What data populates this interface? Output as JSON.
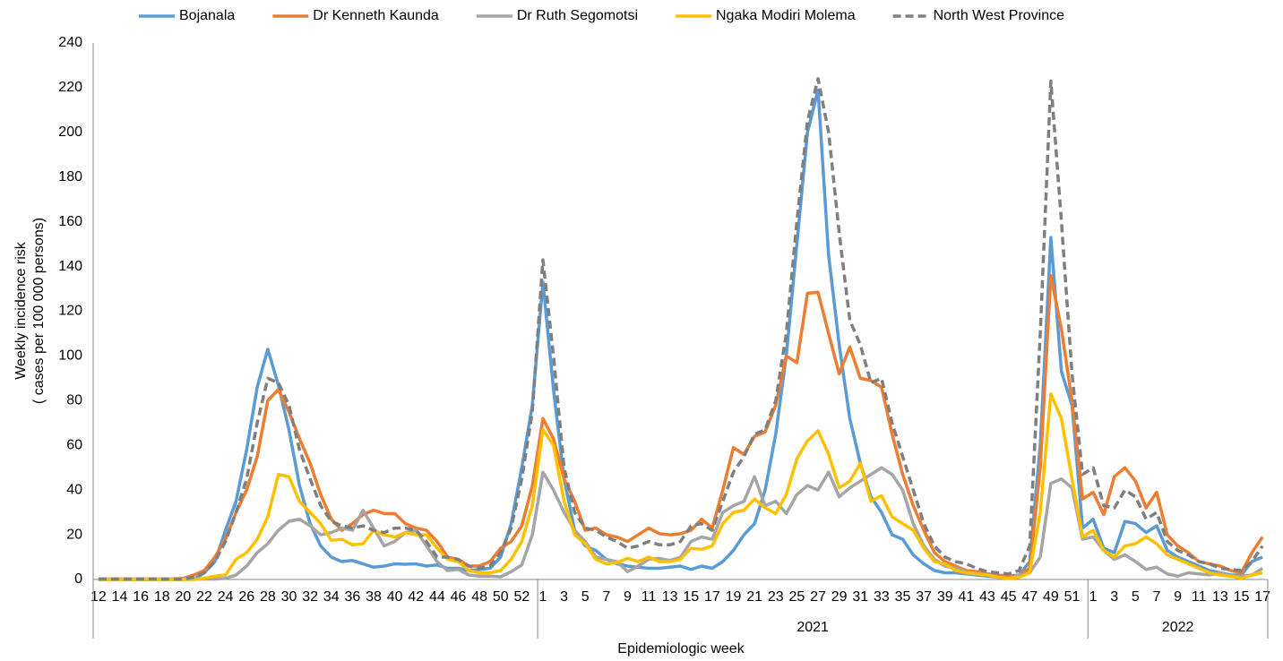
{
  "chart_data": {
    "type": "line",
    "y_label_lines": [
      "Weekly incidence risk",
      "( cases per 100 000 persons)"
    ],
    "x_label": "Epidemiologic week",
    "categories": [
      "12",
      null,
      "14",
      null,
      "16",
      null,
      "18",
      null,
      "20",
      null,
      "22",
      null,
      "24",
      null,
      "26",
      null,
      "28",
      null,
      "30",
      null,
      "32",
      null,
      "34",
      null,
      "36",
      null,
      "38",
      null,
      "40",
      null,
      "42",
      null,
      "44",
      null,
      "46",
      null,
      "48",
      null,
      "50",
      null,
      "52",
      null,
      "1",
      null,
      "3",
      null,
      "5",
      null,
      "7",
      null,
      "9",
      null,
      "11",
      null,
      "13",
      null,
      "15",
      null,
      "17",
      null,
      "19",
      null,
      "21",
      null,
      "23",
      null,
      "25",
      null,
      "27",
      null,
      "29",
      null,
      "31",
      null,
      "33",
      null,
      "35",
      null,
      "37",
      null,
      "39",
      null,
      "41",
      null,
      "43",
      null,
      "45",
      null,
      "47",
      null,
      "49",
      null,
      "51",
      null,
      "1",
      null,
      "3",
      null,
      "5",
      null,
      "7",
      null,
      "9",
      null,
      "11",
      null,
      "13",
      null,
      "15",
      null,
      "17"
    ],
    "category_groups": [
      {
        "label": null,
        "count": 42
      },
      {
        "label": "2021",
        "count": 52
      },
      {
        "label": "2022",
        "count": 17
      }
    ],
    "ylim": [
      0,
      240
    ],
    "yticks": [
      0,
      20,
      40,
      60,
      80,
      100,
      120,
      140,
      160,
      180,
      200,
      220,
      240
    ],
    "grid": false,
    "legend": "top",
    "series": [
      {
        "name": "Bojanala",
        "color": "#5b9bd5",
        "dashed": false,
        "values": [
          0,
          0,
          0,
          0,
          0,
          0,
          0,
          0,
          0,
          0,
          3,
          8,
          22,
          35,
          58,
          86,
          103,
          87,
          67,
          42,
          25,
          15,
          10,
          8,
          8.5,
          7,
          5.5,
          6,
          7,
          6.8,
          7,
          6,
          6.5,
          5,
          5,
          4,
          4.5,
          5,
          10,
          25,
          50,
          78,
          133,
          85,
          45,
          22,
          15,
          13,
          9,
          7,
          6,
          5.5,
          5,
          5,
          5.5,
          6,
          4.5,
          6,
          5,
          8,
          13,
          20,
          25,
          40,
          65,
          100,
          150,
          200,
          219,
          145,
          105,
          72,
          52,
          37,
          30,
          20,
          18,
          11,
          7,
          4,
          3,
          3,
          2.5,
          2,
          1.5,
          1,
          1,
          2,
          8,
          60,
          153,
          93,
          78,
          23,
          27,
          14,
          12,
          26,
          25,
          21,
          24,
          13,
          10,
          8,
          6,
          4,
          3,
          2,
          2,
          8,
          10
        ]
      },
      {
        "name": "Dr Kenneth Kaunda",
        "color": "#ed7d31",
        "dashed": false,
        "values": [
          0.2,
          0.2,
          0.2,
          0.2,
          0.2,
          0.2,
          0.2,
          0.2,
          0.5,
          2,
          4,
          10,
          18,
          30,
          40,
          55,
          80,
          85,
          75,
          63,
          52,
          38,
          27,
          22,
          25,
          29,
          31,
          29.5,
          29.5,
          25,
          23,
          22,
          17,
          10,
          9,
          6,
          6,
          8,
          14,
          17,
          24,
          42,
          72,
          63,
          45,
          35,
          22,
          23,
          20,
          19,
          17,
          20,
          23,
          20.5,
          20,
          20.5,
          22,
          27,
          23,
          40,
          59,
          56,
          64,
          66,
          78,
          100,
          97,
          128,
          128.5,
          110,
          92,
          104,
          90,
          89,
          86,
          65,
          47,
          33,
          22,
          12,
          8,
          6,
          4,
          3.5,
          2.5,
          2,
          1.5,
          2,
          5,
          50,
          136,
          112,
          80,
          36,
          39,
          29,
          46,
          50,
          44,
          32,
          39,
          20,
          15,
          12,
          8,
          7,
          6,
          4,
          3,
          12,
          19
        ]
      },
      {
        "name": "Dr Ruth Segomotsi",
        "color": "#a5a5a5",
        "dashed": false,
        "values": [
          0.2,
          0.2,
          0.2,
          0.2,
          0.2,
          0.2,
          0.2,
          0.2,
          0.2,
          0.2,
          0.2,
          0.2,
          0.5,
          2,
          6,
          12,
          16,
          22,
          26,
          27,
          24,
          20,
          21,
          23,
          22,
          31,
          23,
          15,
          17,
          21,
          22,
          15,
          8,
          4,
          4.5,
          2,
          1.5,
          1.5,
          1.2,
          3.5,
          6.5,
          20,
          48,
          40,
          30,
          22,
          17,
          10,
          9,
          8,
          3.5,
          6,
          9,
          9.5,
          8.5,
          10,
          17,
          19,
          18,
          30,
          33,
          35,
          46,
          33,
          35,
          29.5,
          38,
          42,
          40,
          48,
          37,
          41,
          44,
          47,
          50,
          47,
          40,
          25,
          15,
          9,
          6,
          5,
          3.5,
          2.5,
          2,
          1,
          0.5,
          2,
          3,
          10,
          43,
          45,
          41,
          18,
          19,
          13,
          9,
          11,
          8,
          4.5,
          5.5,
          2.5,
          1.5,
          3,
          2.5,
          2,
          3,
          1.5,
          1.5,
          2,
          5
        ]
      },
      {
        "name": "Ngaka Modiri Molema",
        "color": "#ffc000",
        "dashed": false,
        "values": [
          0,
          0,
          0,
          0,
          0,
          0,
          0,
          0,
          0,
          0,
          0.5,
          1.5,
          2,
          9,
          12,
          18,
          28,
          47,
          46,
          35,
          30,
          25,
          17.5,
          18,
          15.5,
          16,
          22,
          20,
          19,
          21,
          20,
          20,
          14,
          9,
          8,
          4,
          3,
          3,
          4,
          9,
          17,
          33,
          67,
          60,
          35,
          20,
          16,
          9,
          7,
          7.5,
          9.5,
          8,
          10,
          8,
          8,
          9,
          14,
          13.5,
          15,
          25,
          30,
          31,
          36,
          32,
          29.5,
          38,
          54,
          62,
          66.5,
          56,
          41,
          44,
          52,
          35,
          37.5,
          28,
          25,
          22,
          14,
          8,
          7,
          4,
          3,
          2.5,
          2,
          1,
          0.5,
          1,
          3,
          30,
          83,
          72,
          45,
          19,
          22,
          13,
          10,
          15,
          16,
          19,
          16,
          11,
          9,
          7,
          5,
          3,
          2,
          1.5,
          0.5,
          2,
          3
        ]
      },
      {
        "name": "North West Province",
        "color": "#7f7f7f",
        "dashed": true,
        "values": [
          0.2,
          0.2,
          0.2,
          0.2,
          0.2,
          0.2,
          0.2,
          0.2,
          0.2,
          1,
          3,
          8,
          17,
          30,
          45,
          70,
          90,
          88,
          78,
          58,
          45,
          33,
          26,
          24,
          23,
          24,
          22,
          21,
          23,
          23,
          22,
          17,
          10,
          10,
          9,
          6,
          5,
          6,
          12,
          23,
          45,
          75,
          143,
          100,
          50,
          30,
          23,
          22,
          19,
          17,
          14,
          15,
          17,
          15.5,
          15.5,
          17,
          24,
          25,
          22,
          35,
          48,
          55,
          65,
          67,
          80,
          110,
          160,
          205,
          224,
          200,
          155,
          116,
          105,
          88,
          90,
          70,
          55,
          40,
          25,
          15,
          10,
          8,
          7,
          5,
          3.5,
          3,
          2.5,
          4,
          15,
          110,
          223,
          160,
          92,
          47,
          50,
          33,
          32,
          40,
          37,
          27,
          30,
          17,
          13,
          11,
          8,
          7,
          5,
          4.5,
          4,
          8,
          15
        ]
      }
    ]
  }
}
